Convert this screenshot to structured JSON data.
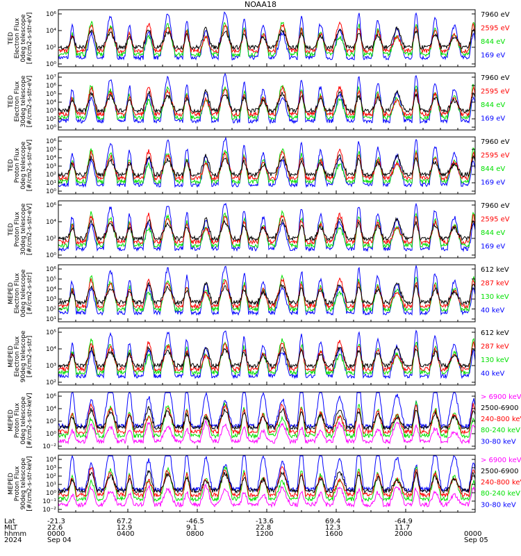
{
  "title": "NOAA18",
  "colors": {
    "black": "#000000",
    "red": "#ff0000",
    "green": "#00e000",
    "blue": "#0000ff",
    "magenta": "#ff00ff"
  },
  "chart_data": [
    {
      "type": "line",
      "ylabel": [
        "TED",
        "Electron Flux",
        "0deg telescope",
        "[#/cm2-s-str-eV]"
      ],
      "ylim": [
        1,
        1000000.0
      ],
      "log": true,
      "grid": false,
      "ticks": [
        "10⁰",
        "10²",
        "10⁴",
        "10⁶"
      ],
      "series": [
        {
          "name": "7960 eV",
          "color": "black"
        },
        {
          "name": "2595 eV",
          "color": "red"
        },
        {
          "name": "844 eV",
          "color": "green"
        },
        {
          "name": "169 eV",
          "color": "blue"
        }
      ]
    },
    {
      "type": "line",
      "ylabel": [
        "TED",
        "Electron Flux",
        "30deg telescope",
        "[#/cm2-s-str-eV]"
      ],
      "ylim": [
        1,
        10000000.0
      ],
      "log": true,
      "grid": false,
      "ticks": [
        "10⁰",
        "10²",
        "10³",
        "10⁴",
        "10⁵",
        "10⁶",
        "10⁷"
      ],
      "series": [
        {
          "name": "7960 eV",
          "color": "black"
        },
        {
          "name": "2595 eV",
          "color": "red"
        },
        {
          "name": "844 eV",
          "color": "green"
        },
        {
          "name": "169 eV",
          "color": "blue"
        }
      ]
    },
    {
      "type": "line",
      "ylabel": [
        "TED",
        "Proton Flux",
        "0deg telescope",
        "[#/cm2-s-str-eV]"
      ],
      "ylim": [
        1,
        1000000.0
      ],
      "log": true,
      "grid": false,
      "ticks": [
        "10⁰",
        "10¹",
        "10²",
        "10³",
        "10⁴",
        "10⁵",
        "10⁶"
      ],
      "series": [
        {
          "name": "7960 eV",
          "color": "black"
        },
        {
          "name": "2595 eV",
          "color": "red"
        },
        {
          "name": "844 eV",
          "color": "green"
        },
        {
          "name": "169 eV",
          "color": "blue"
        }
      ]
    },
    {
      "type": "line",
      "ylabel": [
        "TED",
        "Proton Flux",
        "30deg telescope",
        "[#/cm2-s-str-eV]"
      ],
      "ylim": [
        1,
        10000000.0
      ],
      "log": true,
      "grid": false,
      "ticks": [
        "10⁰",
        "10²",
        "10⁴",
        "10⁶"
      ],
      "series": [
        {
          "name": "7960 eV",
          "color": "black"
        },
        {
          "name": "2595 eV",
          "color": "red"
        },
        {
          "name": "844 eV",
          "color": "green"
        },
        {
          "name": "169 eV",
          "color": "blue"
        }
      ]
    },
    {
      "type": "line",
      "ylabel": [
        "MEPED",
        "Electron Flux",
        "0deg telescope",
        "[#/cm2-s-str]"
      ],
      "ylim": [
        10,
        1000000.0
      ],
      "log": true,
      "grid": false,
      "ticks": [
        "10¹",
        "10²",
        "10³",
        "10⁴",
        "10⁵",
        "10⁶"
      ],
      "series": [
        {
          "name": "612 keV",
          "color": "black"
        },
        {
          "name": "287 keV",
          "color": "red"
        },
        {
          "name": "130 keV",
          "color": "green"
        },
        {
          "name": "40 keV",
          "color": "blue"
        }
      ]
    },
    {
      "type": "line",
      "ylabel": [
        "MEPED",
        "Electron Flux",
        "90deg telescope",
        "[#/cm2-s-str]"
      ],
      "ylim": [
        10,
        1000000.0
      ],
      "log": true,
      "grid": false,
      "ticks": [
        "10²",
        "10³",
        "10⁴",
        "10⁵"
      ],
      "series": [
        {
          "name": "612 keV",
          "color": "black"
        },
        {
          "name": "287 keV",
          "color": "red"
        },
        {
          "name": "130 keV",
          "color": "green"
        },
        {
          "name": "40 keV",
          "color": "blue"
        }
      ]
    },
    {
      "type": "line",
      "ylabel": [
        "MEPED",
        "Proton Flux",
        "0deg telescope",
        "[#/cm2-s-str-keV]"
      ],
      "ylim": [
        0.01,
        1000000.0
      ],
      "log": true,
      "grid": false,
      "ticks": [
        "10⁻²",
        "10⁰",
        "10²",
        "10⁴",
        "10⁶"
      ],
      "series": [
        {
          "name": "> 6900 keV",
          "color": "magenta"
        },
        {
          "name": "2500-6900",
          "color": "black"
        },
        {
          "name": "240-800 keV",
          "color": "red"
        },
        {
          "name": "80-240 keV",
          "color": "green"
        },
        {
          "name": "30-80 keV",
          "color": "blue"
        }
      ]
    },
    {
      "type": "line",
      "ylabel": [
        "MEPED",
        "Proton Flux",
        "90deg telescope",
        "[#/cm2-s-str-keV]"
      ],
      "ylim": [
        0.01,
        100000.0
      ],
      "log": true,
      "grid": false,
      "ticks": [
        "10⁻²",
        "10⁻¹",
        "10⁰",
        "10¹",
        "10²",
        "10³",
        "10⁴"
      ],
      "series": [
        {
          "name": "> 6900 keV",
          "color": "magenta"
        },
        {
          "name": "2500-6900",
          "color": "black"
        },
        {
          "name": "240-800 keV",
          "color": "red"
        },
        {
          "name": "80-240 keV",
          "color": "green"
        },
        {
          "name": "30-80 keV",
          "color": "blue"
        }
      ]
    }
  ],
  "footer": {
    "labels": [
      "Lat",
      "MLT",
      "hhmm",
      "2024"
    ],
    "columns": [
      {
        "lat": "-21.3",
        "mlt": "22.6",
        "hhmm": "0000",
        "date": "Sep 04"
      },
      {
        "lat": "67.2",
        "mlt": "12.9",
        "hhmm": "0400",
        "date": ""
      },
      {
        "lat": "-46.5",
        "mlt": "9.1",
        "hhmm": "0800",
        "date": ""
      },
      {
        "lat": "-13.6",
        "mlt": "22.8",
        "hhmm": "1200",
        "date": ""
      },
      {
        "lat": "69.4",
        "mlt": "12.3",
        "hhmm": "1600",
        "date": ""
      },
      {
        "lat": "-64.9",
        "mlt": "11.7",
        "hhmm": "2000",
        "date": ""
      },
      {
        "lat": "",
        "mlt": "",
        "hhmm": "0000",
        "date": "Sep 05"
      }
    ]
  }
}
